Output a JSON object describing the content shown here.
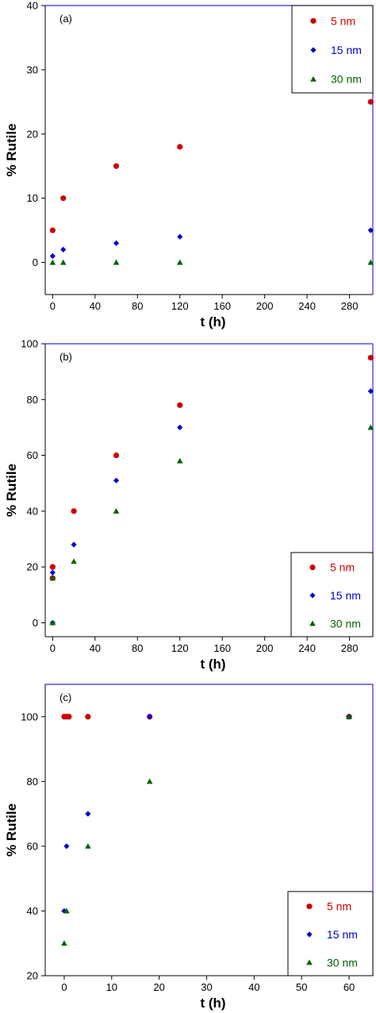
{
  "chart_data": [
    {
      "type": "scatter",
      "panel_label": "(a)",
      "xlabel": "t (h)",
      "ylabel": "% Rutile",
      "xlim": [
        -7,
        302
      ],
      "ylim": [
        -5,
        40
      ],
      "xticks": [
        0,
        40,
        80,
        120,
        160,
        200,
        240,
        280
      ],
      "yticks": [
        0,
        10,
        20,
        30,
        40
      ],
      "grid": false,
      "legend_position": "top-right",
      "series": [
        {
          "name": "5 nm",
          "color": "#cc0000",
          "marker": "circle",
          "x": [
            0,
            10,
            60,
            120,
            300
          ],
          "y": [
            5,
            10,
            15,
            18,
            25
          ]
        },
        {
          "name": "15 nm",
          "color": "#0000cc",
          "marker": "diamond",
          "x": [
            0,
            10,
            60,
            120,
            300
          ],
          "y": [
            1,
            2,
            3,
            4,
            5
          ]
        },
        {
          "name": "30 nm",
          "color": "#006400",
          "marker": "triangle",
          "x": [
            0,
            10,
            60,
            120,
            300
          ],
          "y": [
            0,
            0,
            0,
            0,
            0
          ]
        }
      ]
    },
    {
      "type": "scatter",
      "panel_label": "(b)",
      "xlabel": "t (h)",
      "ylabel": "% Rutile",
      "xlim": [
        -7,
        302
      ],
      "ylim": [
        -5,
        100
      ],
      "xticks": [
        0,
        40,
        80,
        120,
        160,
        200,
        240,
        280
      ],
      "yticks": [
        0,
        20,
        40,
        60,
        80,
        100
      ],
      "grid": false,
      "legend_position": "bottom-right",
      "series": [
        {
          "name": "5 nm",
          "color": "#cc0000",
          "marker": "circle",
          "x": [
            0,
            0,
            20,
            60,
            120,
            300
          ],
          "y": [
            16,
            20,
            40,
            60,
            78,
            95
          ]
        },
        {
          "name": "15 nm",
          "color": "#0000cc",
          "marker": "diamond",
          "x": [
            0,
            0,
            20,
            60,
            120,
            300
          ],
          "y": [
            0,
            18,
            28,
            51,
            70,
            83
          ]
        },
        {
          "name": "30 nm",
          "color": "#006400",
          "marker": "triangle",
          "x": [
            0,
            0,
            20,
            60,
            120,
            300
          ],
          "y": [
            0,
            16,
            22,
            40,
            58,
            70
          ]
        }
      ]
    },
    {
      "type": "scatter",
      "panel_label": "(c)",
      "xlabel": "t (h)",
      "ylabel": "% Rutile",
      "xlim": [
        -4,
        65
      ],
      "ylim": [
        20,
        110
      ],
      "xticks": [
        0,
        10,
        20,
        30,
        40,
        50,
        60
      ],
      "yticks": [
        20,
        40,
        60,
        80,
        100
      ],
      "grid": false,
      "legend_position": "bottom-right",
      "series": [
        {
          "name": "5 nm",
          "color": "#cc0000",
          "marker": "circle",
          "x": [
            0,
            0.5,
            1,
            5,
            18,
            60
          ],
          "y": [
            100,
            100,
            100,
            100,
            100,
            100
          ]
        },
        {
          "name": "15 nm",
          "color": "#0000cc",
          "marker": "diamond",
          "x": [
            0,
            0.5,
            5,
            18,
            60
          ],
          "y": [
            40,
            60,
            70,
            100,
            100
          ]
        },
        {
          "name": "30 nm",
          "color": "#006400",
          "marker": "triangle",
          "x": [
            0,
            0.5,
            5,
            18,
            60
          ],
          "y": [
            30,
            40,
            60,
            80,
            100
          ]
        }
      ]
    }
  ]
}
